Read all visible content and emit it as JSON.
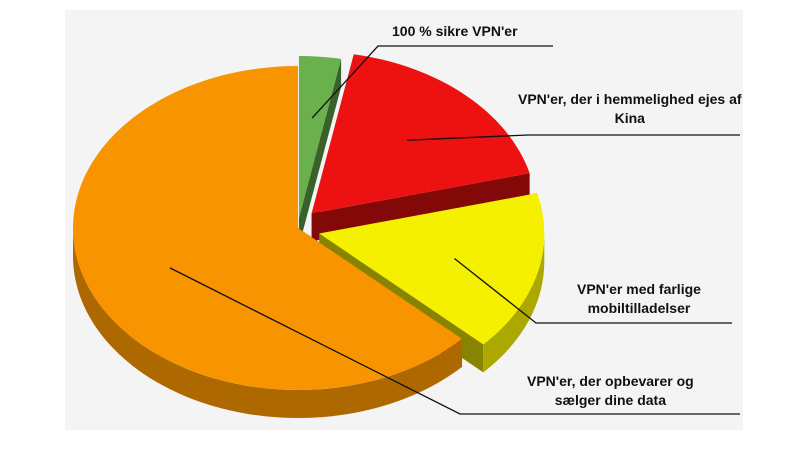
{
  "chart_data": {
    "type": "pie",
    "style": "3d-exploded",
    "title": "",
    "legend": "none",
    "slices": [
      {
        "label": "100 % sikre VPN'er",
        "value": 3,
        "color": "#6ab04c"
      },
      {
        "label": "VPN'er, der i hemmelighed ejes af Kina",
        "value": 18,
        "color": "#ee1111"
      },
      {
        "label": "VPN'er med farlige mobiltilladelser",
        "value": 16,
        "color": "#f4f000"
      },
      {
        "label": "VPN'er, der opbevarer og sælger dine data",
        "value": 63,
        "color": "#f79400"
      }
    ]
  },
  "labels": {
    "secure": "100 % sikre VPN'er",
    "china_line1": "VPN'er, der i hemmelighed ejes af",
    "china_line2": "Kina",
    "mobile_line1": "VPN'er med farlige",
    "mobile_line2": "mobiltilladelser",
    "data_line1": "VPN'er, der opbevarer og",
    "data_line2": "sælger dine data"
  }
}
